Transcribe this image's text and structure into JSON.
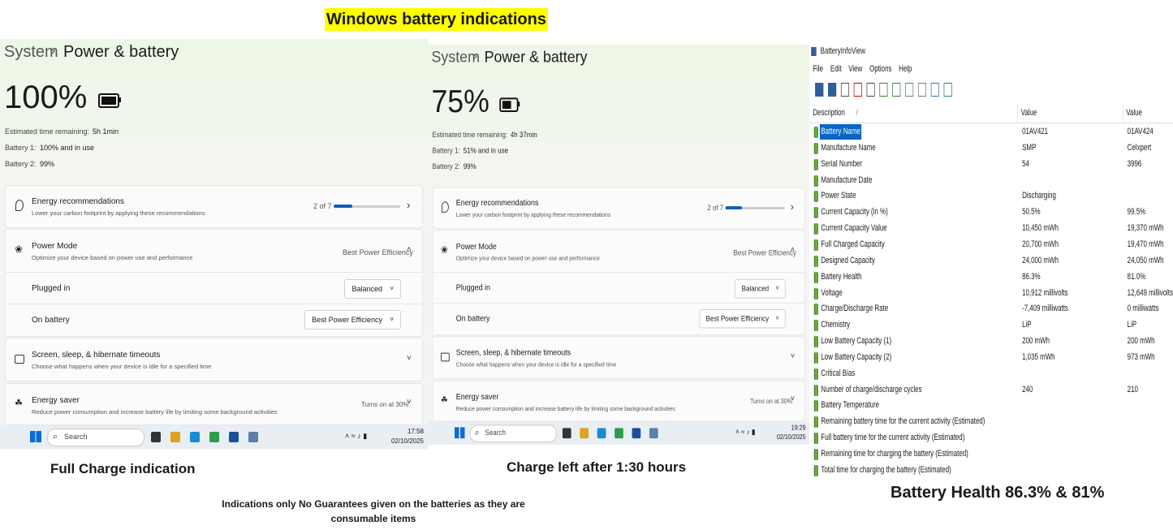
{
  "title": "Windows battery indications",
  "panels": [
    {
      "breadcrumb": [
        "System",
        "Power & battery"
      ],
      "percent": "100%",
      "status": [
        [
          "Estimated time remaining:",
          "5h 1min"
        ],
        [
          "Battery 1:",
          "100% and in use"
        ],
        [
          "Battery 2:",
          "99%"
        ]
      ],
      "energy_rec": {
        "title": "Energy recommendations",
        "subtitle": "Lower your carbon footprint by applying these recommendations",
        "progress": "2 of 7"
      },
      "power_mode": {
        "title": "Power Mode",
        "subtitle": "Optimize your device based on power use and performance",
        "value": "Best Power Efficiency",
        "plugged_in": [
          "Plugged in",
          "Balanced"
        ],
        "on_battery": [
          "On battery",
          "Best Power Efficiency"
        ]
      },
      "screen_sleep": {
        "title": "Screen, sleep, & hibernate timeouts",
        "subtitle": "Choose what happens when your device is idle for a specified time"
      },
      "energy_saver": {
        "title": "Energy saver",
        "subtitle": "Reduce power consumption and increase battery life by limiting some background activities",
        "value": "Turns on at 30%"
      },
      "taskbar": {
        "search": "Search",
        "time": "17:58",
        "date": "02/10/2025"
      }
    },
    {
      "breadcrumb": [
        "System",
        "Power & battery"
      ],
      "percent": "75%",
      "status": [
        [
          "Estimated time remaining:",
          "4h 37min"
        ],
        [
          "Battery 1:",
          "51% and in use"
        ],
        [
          "Battery 2:",
          "99%"
        ]
      ],
      "energy_rec": {
        "title": "Energy recommendations",
        "subtitle": "Lower your carbon footprint by applying these recommendations",
        "progress": "2 of 7"
      },
      "power_mode": {
        "title": "Power Mode",
        "subtitle": "Optimize your device based on power use and performance",
        "value": "Best Power Efficiency",
        "plugged_in": [
          "Plugged in",
          "Balanced"
        ],
        "on_battery": [
          "On battery",
          "Best Power Efficiency"
        ]
      },
      "screen_sleep": {
        "title": "Screen, sleep, & hibernate timeouts",
        "subtitle": "Choose what happens when your device is idle for a specified time"
      },
      "energy_saver": {
        "title": "Energy saver",
        "subtitle": "Reduce power consumption and increase battery life by limiting some background activities",
        "value": "Turns on at 30%"
      },
      "taskbar": {
        "search": "Search",
        "time": "19:29",
        "date": "02/10/2025"
      }
    }
  ],
  "battery_info_view": {
    "window_title": "BatteryInfoView",
    "menu": [
      "File",
      "Edit",
      "View",
      "Options",
      "Help"
    ],
    "columns": [
      "Description",
      "Value",
      "Value"
    ],
    "rows": [
      [
        "Battery Name",
        "01AV421",
        "01AV424"
      ],
      [
        "Manufacture Name",
        "SMP",
        "Celxpert"
      ],
      [
        "Serial Number",
        "54",
        "3996"
      ],
      [
        "Manufacture Date"
      ],
      [
        "Power State",
        "Discharging"
      ],
      [
        "Current Capacity (in %)",
        "50.5%",
        "99.5%"
      ],
      [
        "Current Capacity Value",
        "10,450 mWh",
        "19,370 mWh"
      ],
      [
        "Full Charged Capacity",
        "20,700 mWh",
        "19,470 mWh"
      ],
      [
        "Designed Capacity",
        "24,000 mWh",
        "24,050 mWh"
      ],
      [
        "Battery Health",
        "86.3%",
        "81.0%"
      ],
      [
        "Voltage",
        "10,912 millivolts",
        "12,649 millivolts"
      ],
      [
        "Charge/Discharge Rate",
        "-7,409 milliwatts",
        "0 milliwatts"
      ],
      [
        "Chemistry",
        "LiP",
        "LiP"
      ],
      [
        "Low Battery Capacity (1)",
        "200 mWh",
        "200 mWh"
      ],
      [
        "Low Battery Capacity (2)",
        "1,035 mWh",
        "973 mWh"
      ],
      [
        "Critical Bias"
      ],
      [
        "Number of charge/discharge cycles",
        "240",
        "210"
      ],
      [
        "Battery Temperature"
      ],
      [
        "Remaining battery time for the current activity (Estimated)"
      ],
      [
        "Full battery time for the current activity (Estimated)"
      ],
      [
        "Remaining time for charging the battery (Estimated)"
      ],
      [
        "Total  time for charging the battery (Estimated)"
      ]
    ]
  },
  "captions": [
    "Full Charge indication",
    "Charge left after 1:30 hours",
    "Battery Health 86.3% & 81%"
  ],
  "note": "Indications only No Guarantees given on the batteries as they are consumable items"
}
